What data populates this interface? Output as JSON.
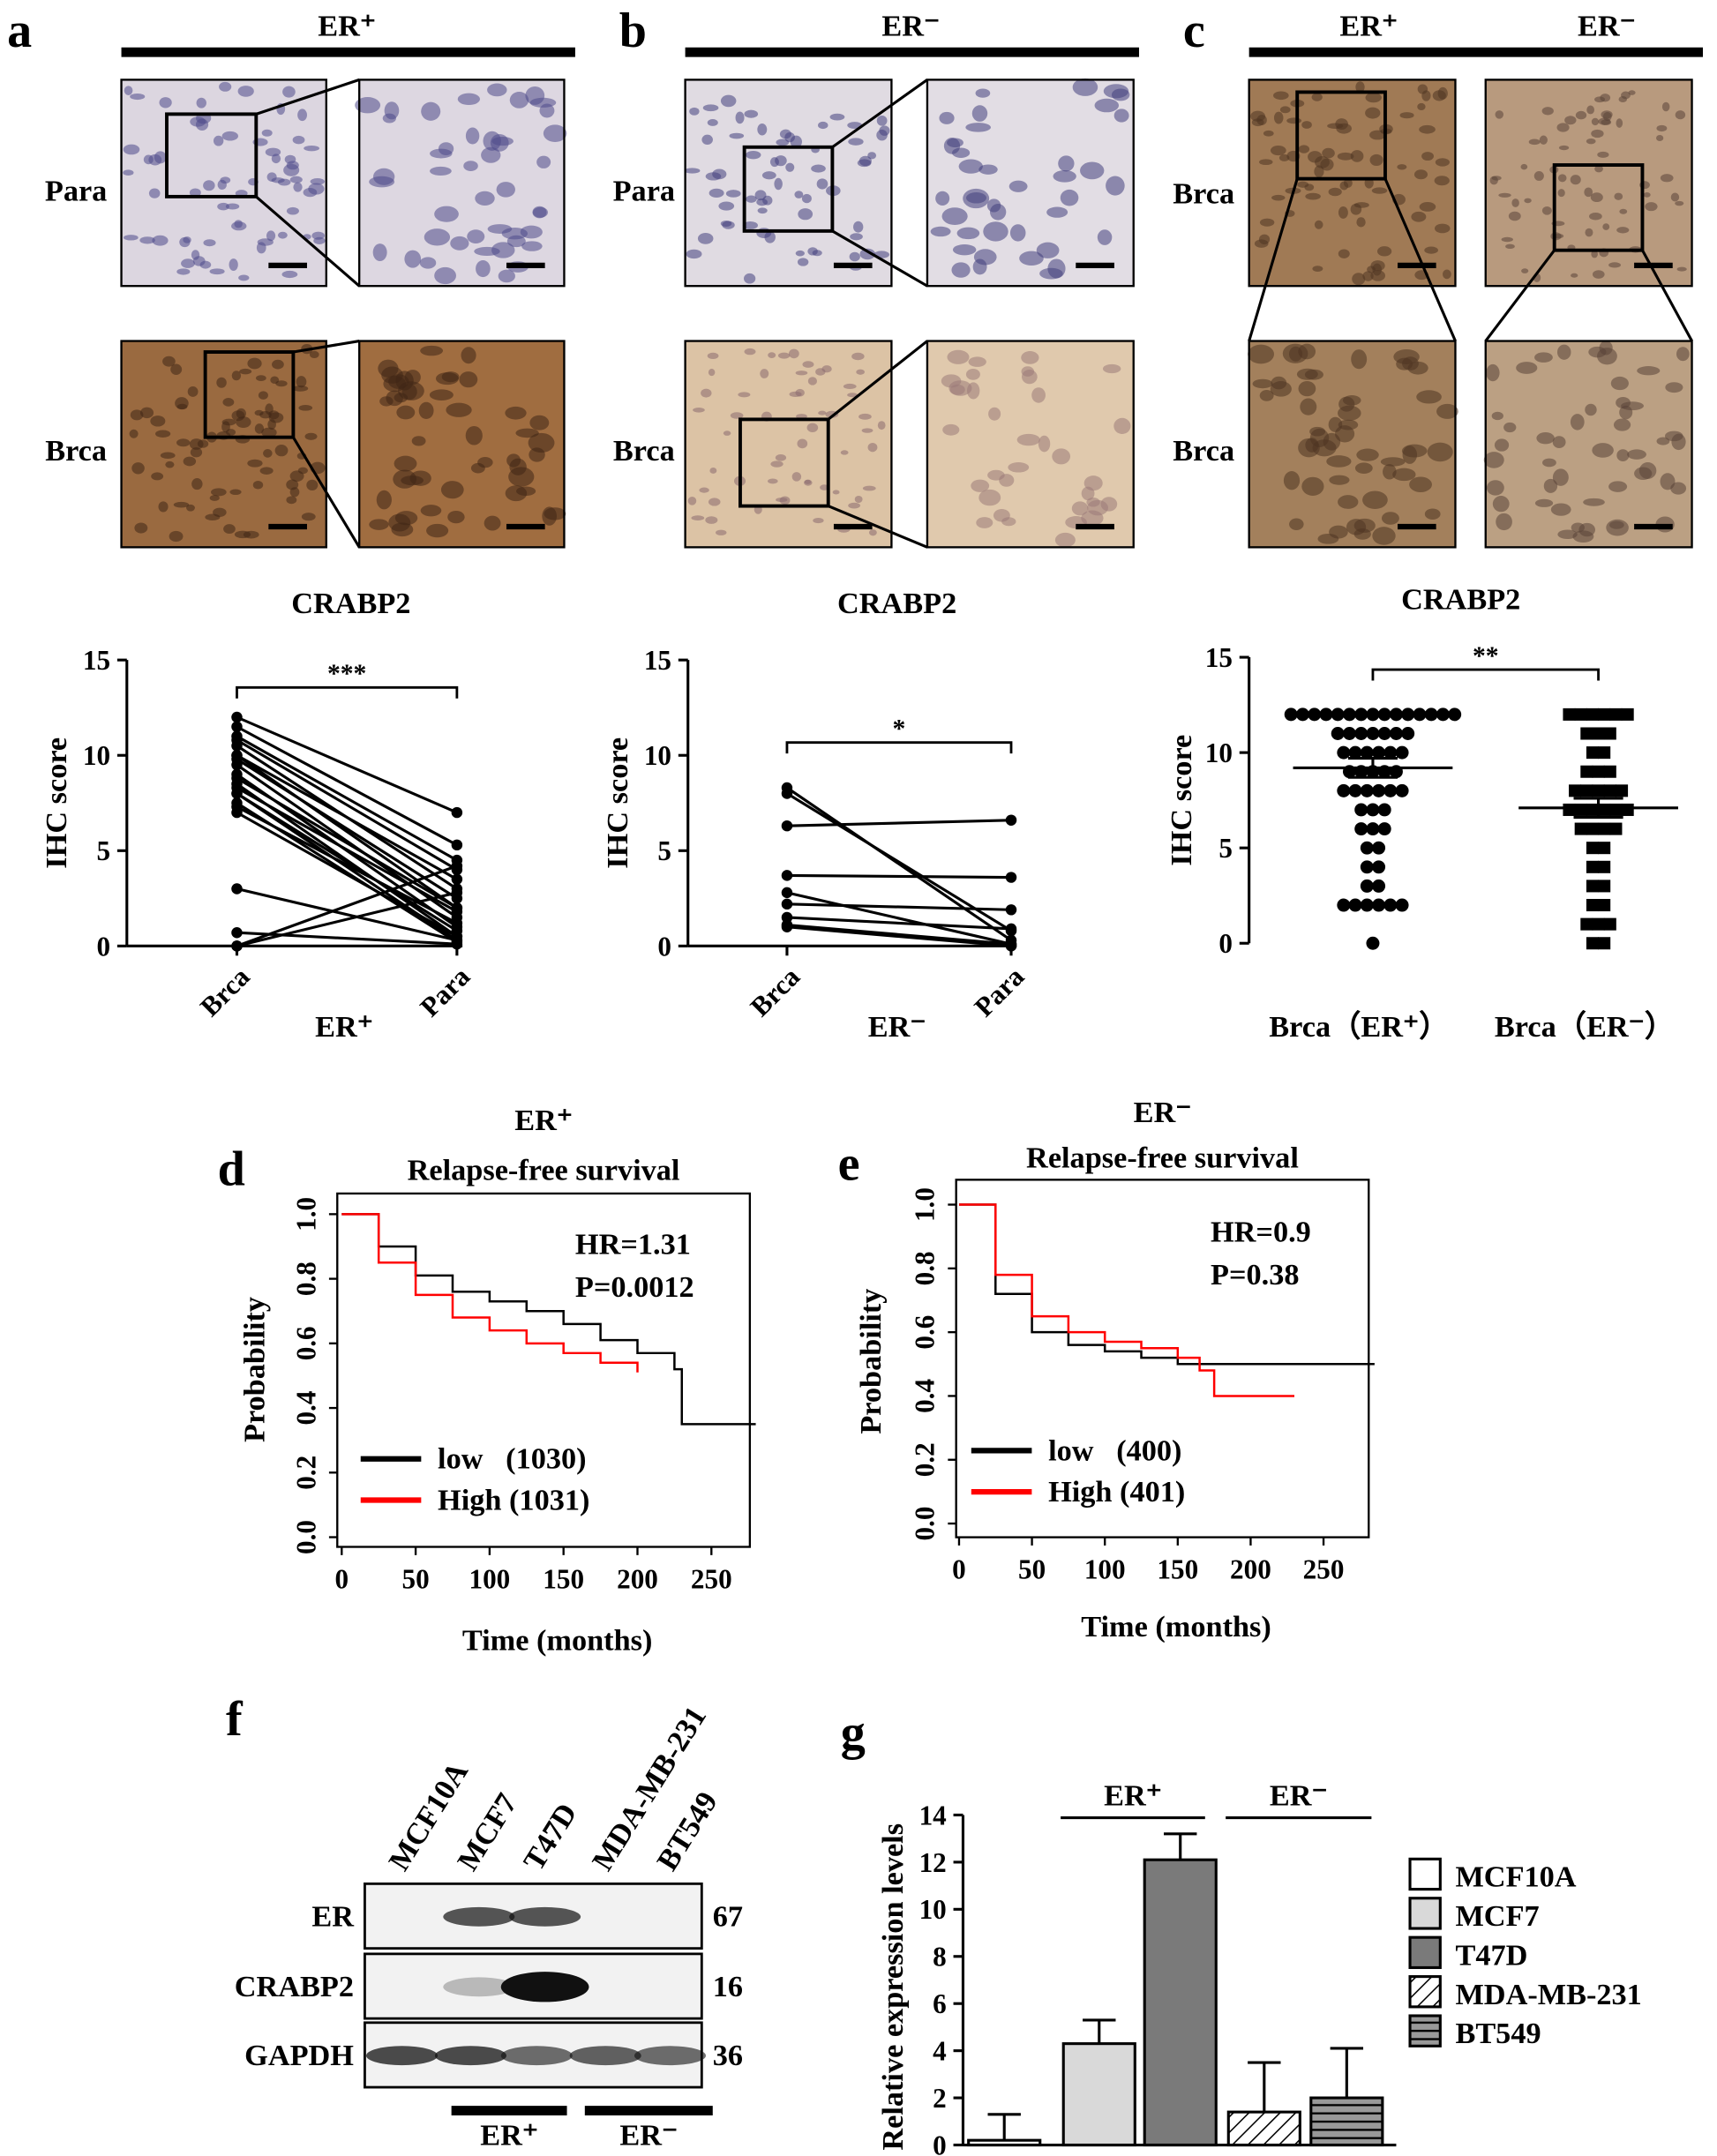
{
  "micrographs": {
    "a": {
      "label": "a",
      "header": "ER⁺",
      "rows": [
        "Para",
        "Brca"
      ]
    },
    "b": {
      "label": "b",
      "header": "ER⁻",
      "rows": [
        "Para",
        "Brca"
      ]
    },
    "c": {
      "label": "c",
      "headers": [
        "ER⁺",
        "ER⁻"
      ],
      "rows": [
        "Brca",
        "Brca"
      ]
    }
  },
  "chart_data": [
    {
      "type": "paired",
      "title": "CRABP2",
      "ylabel": "IHC score",
      "xlabel": "ER⁺",
      "categories": [
        "Brca",
        "Para"
      ],
      "values": [
        [
          12,
          11.5,
          11,
          10.8,
          10.5,
          10,
          10,
          9.8,
          9.5,
          9,
          8.8,
          8.5,
          8.3,
          8,
          8,
          7.5,
          7.3,
          7,
          3,
          0.7,
          0,
          0
        ],
        [
          7,
          5.3,
          4.5,
          4,
          3,
          2,
          3.5,
          2.5,
          1.5,
          1,
          2,
          0.5,
          1.8,
          0.8,
          0.3,
          0.2,
          1.2,
          0.5,
          0.3,
          0.1,
          4.2,
          2.8
        ]
      ],
      "significance": "***",
      "color": "#000000",
      "ylim": [
        0,
        15
      ],
      "yticks": [
        0,
        5,
        10,
        15
      ]
    },
    {
      "type": "paired",
      "title": "CRABP2",
      "ylabel": "IHC score",
      "xlabel": "ER⁻",
      "categories": [
        "Brca",
        "Para"
      ],
      "values": [
        [
          8.3,
          8,
          6.3,
          3.7,
          2.8,
          2.2,
          1.5,
          1.1,
          1.0
        ],
        [
          0.3,
          0.8,
          6.6,
          3.6,
          0.1,
          1.9,
          0.9,
          0.1,
          0
        ]
      ],
      "significance": "*",
      "color": "#000000",
      "ylim": [
        0,
        15
      ],
      "yticks": [
        0,
        5,
        10,
        15
      ]
    },
    {
      "type": "dotplot",
      "title": "CRABP2",
      "ylabel": "IHC score",
      "categories": [
        "Brca（ER⁺）",
        "Brca（ER⁻）"
      ],
      "values": [
        [
          12,
          12,
          12,
          12,
          12,
          12,
          12,
          12,
          12,
          12,
          12,
          12,
          12,
          12,
          12,
          11,
          11,
          11,
          11,
          11,
          11,
          11,
          10,
          10,
          10,
          10,
          10,
          10,
          9,
          9,
          9,
          9,
          9,
          8,
          8,
          8,
          8,
          8,
          8,
          7,
          7,
          7,
          6,
          6,
          6,
          5,
          5,
          4,
          4,
          3,
          3,
          2,
          2,
          2,
          2,
          2,
          2,
          0
        ],
        [
          12,
          12,
          12,
          12,
          12,
          12,
          11,
          11,
          11,
          10,
          10,
          9,
          9,
          9,
          8,
          8,
          8,
          8,
          8,
          7,
          7,
          7,
          7,
          7,
          7,
          6,
          6,
          6,
          6,
          5,
          5,
          4,
          4,
          3,
          3,
          2,
          2,
          1,
          1,
          1,
          0,
          0
        ]
      ],
      "means": [
        9.2,
        7.1
      ],
      "errors": [
        0.5,
        0.5
      ],
      "markers": [
        "circle",
        "square"
      ],
      "significance": "**",
      "color": "#000000",
      "ylim": [
        0,
        15
      ],
      "yticks": [
        0,
        5,
        10,
        15
      ]
    },
    {
      "type": "survival",
      "panel": "d",
      "title": "ER⁺",
      "subtitle": "Relapse-free survival",
      "xlabel": "Time (months)",
      "ylabel": "Probability",
      "annotations": [
        "HR=1.31",
        "P=0.0012"
      ],
      "series": [
        {
          "name": "low   (1030)",
          "color": "#000000",
          "x": [
            0,
            25,
            50,
            75,
            100,
            125,
            150,
            175,
            200,
            225,
            230,
            280
          ],
          "values": [
            1,
            0.9,
            0.81,
            0.76,
            0.73,
            0.7,
            0.66,
            0.61,
            0.57,
            0.52,
            0.35,
            0.35
          ]
        },
        {
          "name": "High (1031)",
          "color": "#ff0000",
          "x": [
            0,
            25,
            50,
            75,
            100,
            125,
            150,
            175,
            200
          ],
          "values": [
            1,
            0.85,
            0.75,
            0.68,
            0.64,
            0.6,
            0.57,
            0.54,
            0.51
          ]
        }
      ],
      "xlim": [
        -3,
        276
      ],
      "xticks": [
        0,
        50,
        100,
        150,
        200,
        250
      ],
      "ylim": [
        -0.03,
        1.064
      ],
      "yticks": [
        {
          "value": 0,
          "label": "0.0"
        },
        {
          "value": 0.2,
          "label": "0.2"
        },
        {
          "value": 0.4,
          "label": "0.4"
        },
        {
          "value": 0.6,
          "label": "0.6"
        },
        {
          "value": 0.8,
          "label": "0.8"
        },
        {
          "value": 1,
          "label": "1.0"
        }
      ]
    },
    {
      "type": "survival",
      "panel": "e",
      "title": "ER⁻",
      "subtitle": "Relapse-free survival",
      "xlabel": "Time (months)",
      "ylabel": "Probability",
      "annotations": [
        "HR=0.9",
        "P=0.38"
      ],
      "series": [
        {
          "name": "low   (400)",
          "color": "#000000",
          "x": [
            0,
            25,
            50,
            75,
            100,
            125,
            150,
            175,
            200,
            285
          ],
          "values": [
            1,
            0.72,
            0.6,
            0.56,
            0.54,
            0.52,
            0.5,
            0.5,
            0.5,
            0.5
          ]
        },
        {
          "name": "High (401)",
          "color": "#ff0000",
          "x": [
            0,
            25,
            50,
            75,
            100,
            125,
            150,
            165,
            175,
            230
          ],
          "values": [
            1,
            0.78,
            0.65,
            0.6,
            0.57,
            0.55,
            0.52,
            0.48,
            0.4,
            0.4
          ]
        }
      ],
      "xlim": [
        -2,
        281
      ],
      "xticks": [
        0,
        50,
        100,
        150,
        200,
        250
      ],
      "ylim": [
        -0.043,
        1.078
      ],
      "yticks": [
        {
          "value": 0,
          "label": "0.0"
        },
        {
          "value": 0.2,
          "label": "0.2"
        },
        {
          "value": 0.4,
          "label": "0.4"
        },
        {
          "value": 0.6,
          "label": "0.6"
        },
        {
          "value": 0.8,
          "label": "0.8"
        },
        {
          "value": 1,
          "label": "1.0"
        }
      ]
    },
    {
      "type": "bar",
      "panel": "g",
      "ylabel": "Relative expression levels",
      "categories": [
        "MCF10A",
        "MCF7",
        "T47D",
        "MDA-MB-231",
        "BT549"
      ],
      "values": [
        0.2,
        4.3,
        12.1,
        1.4,
        2.0
      ],
      "errors": [
        1.1,
        1.0,
        1.1,
        2.1,
        2.1
      ],
      "colors": [
        "#ffffff",
        "#d9d9d9",
        "#7a7a7a",
        "#ffffff",
        "#ffffff"
      ],
      "patterns": [
        null,
        null,
        null,
        "diagonal",
        "horizontal"
      ],
      "groups": [
        "ER⁺",
        "ER⁻"
      ],
      "ylim": [
        0,
        14
      ],
      "yticks": [
        0,
        2,
        4,
        6,
        8,
        10,
        12,
        14
      ]
    }
  ],
  "blot": {
    "panel": "f",
    "lanes": [
      "MCF10A",
      "MCF7",
      "T47D",
      "MDA-MB-231",
      "BT549"
    ],
    "proteins": [
      "ER",
      "CRABP2",
      "GAPDH"
    ],
    "sizes": [
      "67",
      "16",
      "36"
    ],
    "groups": [
      "ER⁺",
      "ER⁻"
    ]
  }
}
